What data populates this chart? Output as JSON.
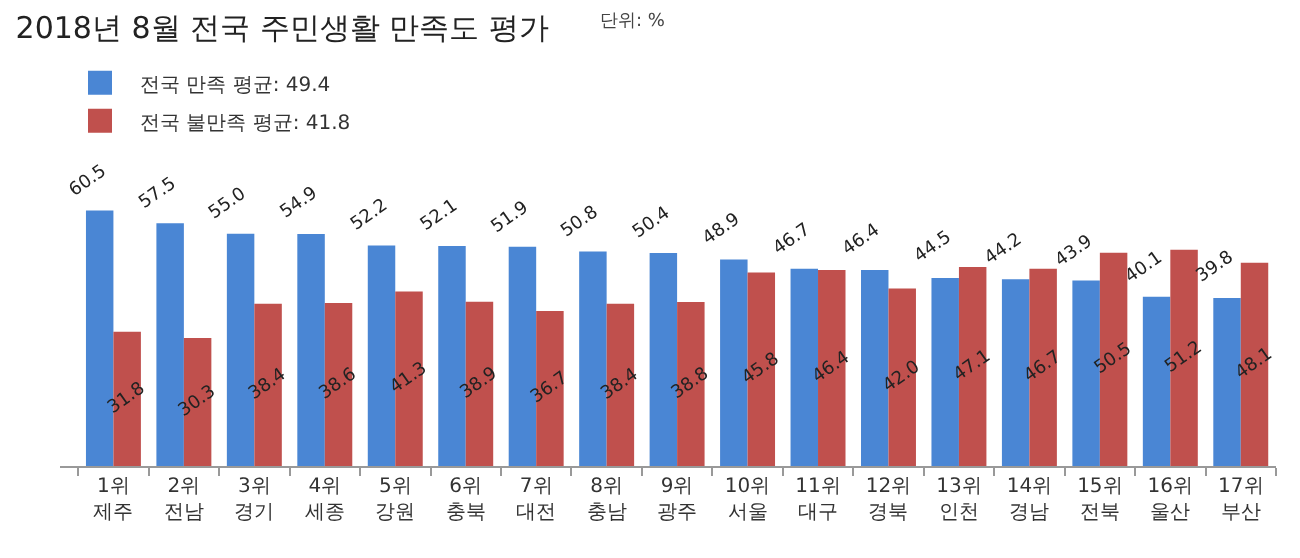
{
  "chart_data": {
    "type": "bar",
    "title": "2018년 8월 전국 주민생활 만족도 평가",
    "subtitle": "단위: %",
    "categories": [
      "1위\n제주",
      "2위\n전남",
      "3위\n경기",
      "4위\n세종",
      "5위\n강원",
      "6위\n충북",
      "7위\n대전",
      "8위\n충남",
      "9위\n광주",
      "10위\n서울",
      "11위\n대구",
      "12위\n경북",
      "13위\n인천",
      "14위\n경남",
      "15위\n전북",
      "16위\n울산",
      "17위\n부산"
    ],
    "series": [
      {
        "name": "전국 만족 평균: 49.4",
        "color": "#4a86d4",
        "values": [
          60.5,
          57.5,
          55.0,
          54.9,
          52.2,
          52.1,
          51.9,
          50.8,
          50.4,
          48.9,
          46.7,
          46.4,
          44.5,
          44.2,
          43.9,
          40.1,
          39.8
        ],
        "value_labels": [
          "60.5",
          "57.5",
          "55.0",
          "54.9",
          "52.2",
          "52.1",
          "51.9",
          "50.8",
          "50.4",
          "48.9",
          "46.7",
          "46.4",
          "44.5",
          "44.2",
          "43.9",
          "40.1",
          "39.8"
        ]
      },
      {
        "name": "전국 불만족 평균: 41.8",
        "color": "#c0504d",
        "values": [
          31.8,
          30.3,
          38.4,
          38.6,
          41.3,
          38.9,
          36.7,
          38.4,
          38.8,
          45.8,
          46.4,
          42.0,
          47.1,
          46.7,
          50.5,
          51.2,
          48.1
        ],
        "value_labels": [
          "31.8",
          "30.3",
          "38.4",
          "38.6",
          "41.3",
          "38.9",
          "36.7",
          "38.4",
          "38.8",
          "45.8",
          "46.4",
          "42.0",
          "47.1",
          "46.7",
          "50.5",
          "51.2",
          "48.1"
        ]
      }
    ],
    "legend": "top left",
    "grid": false
  }
}
